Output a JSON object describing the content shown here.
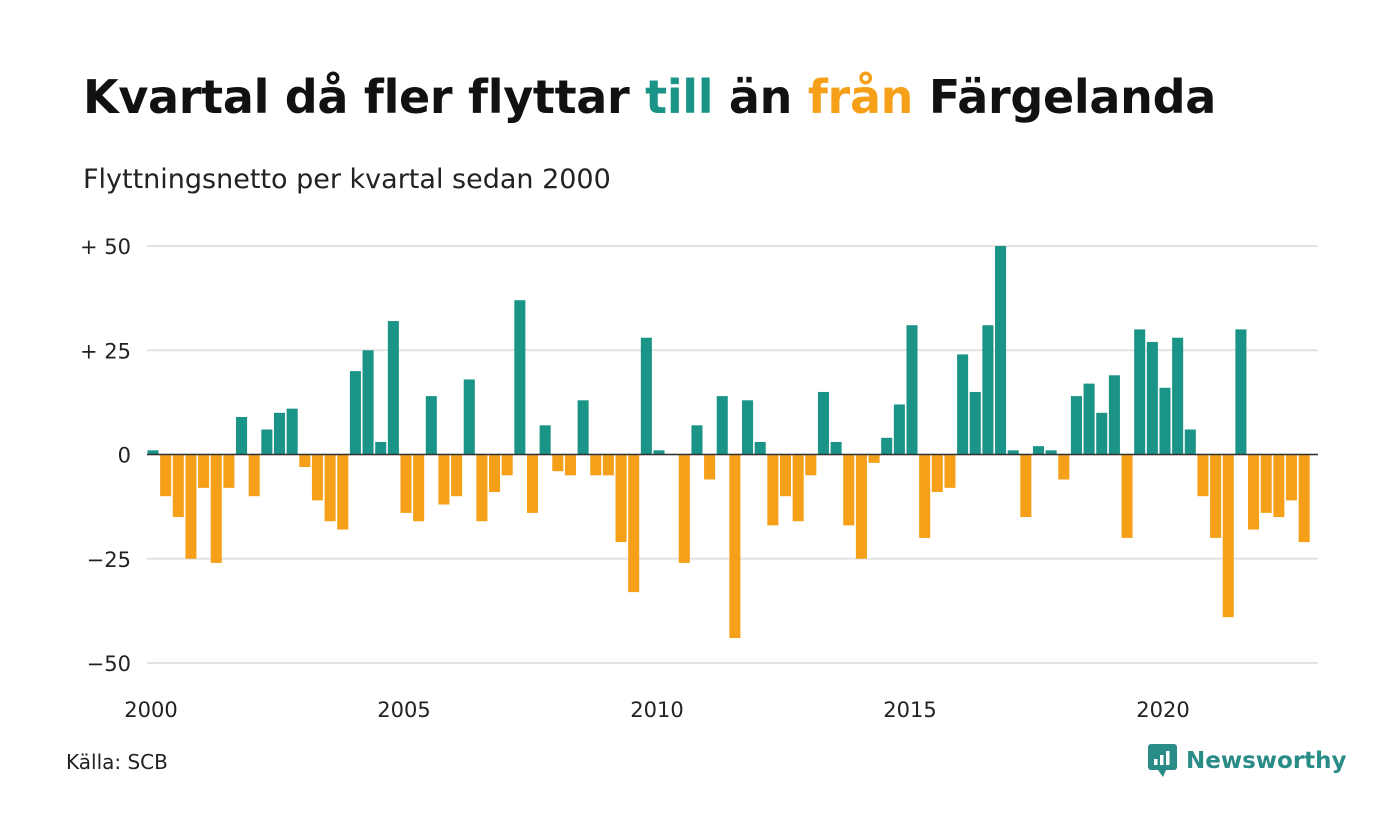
{
  "title": {
    "part1": "Kvartal då fler flyttar ",
    "highlight_in": "till",
    "part2": " än ",
    "highlight_out": "från",
    "part3": " Färgelanda"
  },
  "subtitle": "Flyttningsnetto per kvartal sedan 2000",
  "source": "Källa: SCB",
  "brand": {
    "name": "Newsworthy",
    "icon": "newsworthy-logo-icon"
  },
  "colors": {
    "positive": "#1a9487",
    "negative": "#f6a01a",
    "grid": "#e3e3e3",
    "axis": "#333333"
  },
  "chart_data": {
    "type": "bar",
    "x_start": 2000,
    "x_step": 0.25,
    "x_ticks": [
      2000,
      2005,
      2010,
      2015,
      2020
    ],
    "y_ticks": [
      {
        "value": 50,
        "label": "+ 50"
      },
      {
        "value": 25,
        "label": "+ 25"
      },
      {
        "value": 0,
        "label": "0"
      },
      {
        "value": -25,
        "label": "−25"
      },
      {
        "value": -50,
        "label": "−50"
      }
    ],
    "ylim": [
      -50,
      50
    ],
    "grid": true,
    "values": [
      1,
      -10,
      -15,
      -25,
      -8,
      -26,
      -8,
      9,
      -10,
      6,
      10,
      11,
      -3,
      -11,
      -16,
      -18,
      20,
      25,
      3,
      32,
      -14,
      -16,
      14,
      -12,
      -10,
      18,
      -16,
      -9,
      -5,
      37,
      -14,
      7,
      -4,
      -5,
      13,
      -5,
      -5,
      -21,
      -33,
      28,
      1,
      0,
      -26,
      7,
      -6,
      14,
      -44,
      13,
      3,
      -17,
      -10,
      -16,
      -5,
      15,
      3,
      -17,
      -25,
      -2,
      4,
      12,
      31,
      -20,
      -9,
      -8,
      24,
      15,
      31,
      50,
      1,
      -15,
      2,
      1,
      -6,
      14,
      17,
      10,
      19,
      -20,
      30,
      27,
      16,
      28,
      6,
      -10,
      -20,
      -39,
      30,
      -18,
      -14,
      -15,
      -11,
      -21
    ]
  }
}
